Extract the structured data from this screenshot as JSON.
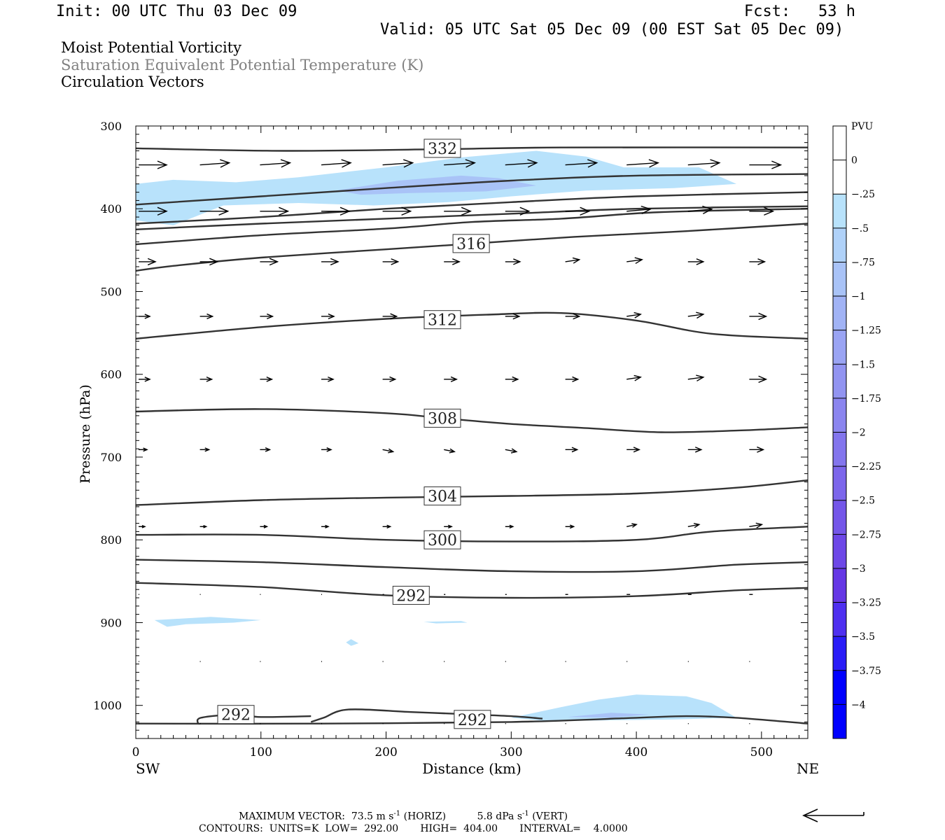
{
  "header": {
    "init": "Init: 00 UTC Thu 03 Dec 09",
    "fcst": "Fcst:   53 h",
    "valid": "Valid: 05 UTC Sat 05 Dec 09 (00 EST Sat 05 Dec 09)"
  },
  "titles": {
    "line1": "Moist Potential Vorticity",
    "line2": "Saturation Equivalent Potential Temperature (K)",
    "line3": "Circulation Vectors"
  },
  "footer": {
    "max_vector_prefix": "MAXIMUM VECTOR:  73.5 m s",
    "max_vector_horiz": "(HORIZ)",
    "max_vector_vert_value": "5.8 dPa s",
    "max_vector_vert": "(VERT)",
    "exponent": "-1",
    "contours": "CONTOURS:  UNITS=K  LOW=  292.00       HIGH=  404.00       INTERVAL=    4.0000"
  },
  "colors": {
    "contour": "#333333",
    "mpv_light": "#b8e2fb",
    "mpv_medium": "#a9c3f7"
  },
  "chart_data": {
    "type": "cross-section",
    "ylabel": "Pressure (hPa)",
    "xlabel": "Distance (km)",
    "x_endpoints": {
      "left": "SW",
      "right": "NE"
    },
    "xlim": [
      0,
      537
    ],
    "ylim": [
      1040,
      300
    ],
    "x_ticks": [
      0,
      100,
      200,
      300,
      400,
      500
    ],
    "y_ticks": [
      300,
      400,
      500,
      600,
      700,
      800,
      900,
      1000
    ],
    "colorbar": {
      "title": "PVU",
      "levels": [
        "0",
        "-.25",
        "-.5",
        "-.75",
        "-1",
        "-1.25",
        "-1.5",
        "-1.75",
        "-2",
        "-2.25",
        "-2.5",
        "-2.75",
        "-3",
        "-3.25",
        "-3.5",
        "-3.75",
        "-4"
      ],
      "colors": [
        "#ffffff",
        "#ffffff",
        "#b8e2fb",
        "#b0d2f9",
        "#a9c3f7",
        "#a1b3f5",
        "#9aa4f3",
        "#9294f1",
        "#8b85ef",
        "#8375ed",
        "#7c66eb",
        "#7456e9",
        "#6d47e7",
        "#6537e5",
        "#4e2ff0",
        "#2a1cf7",
        "#0000ff"
      ]
    },
    "theta_es_contours": [
      {
        "label": "332",
        "label_at": [
          245,
          327
        ],
        "points": [
          [
            0,
            327
          ],
          [
            120,
            330
          ],
          [
            245,
            328
          ],
          [
            340,
            326
          ],
          [
            537,
            326
          ]
        ]
      },
      {
        "label": "",
        "points": [
          [
            0,
            395
          ],
          [
            100,
            385
          ],
          [
            200,
            375
          ],
          [
            300,
            366
          ],
          [
            400,
            360
          ],
          [
            537,
            358
          ]
        ]
      },
      {
        "label": "",
        "points": [
          [
            0,
            418
          ],
          [
            100,
            410
          ],
          [
            200,
            400
          ],
          [
            300,
            392
          ],
          [
            400,
            385
          ],
          [
            537,
            380
          ]
        ]
      },
      {
        "label": "",
        "points": [
          [
            0,
            425
          ],
          [
            100,
            418
          ],
          [
            200,
            412
          ],
          [
            300,
            406
          ],
          [
            400,
            400
          ],
          [
            537,
            397
          ]
        ]
      },
      {
        "label": "316",
        "label_at": [
          268,
          442
        ],
        "points": [
          [
            0,
            443
          ],
          [
            100,
            432
          ],
          [
            200,
            424
          ],
          [
            268,
            416
          ],
          [
            340,
            412
          ],
          [
            420,
            404
          ],
          [
            537,
            400
          ]
        ]
      },
      {
        "label": "",
        "points": [
          [
            0,
            475
          ],
          [
            30,
            469
          ],
          [
            100,
            459
          ],
          [
            200,
            449
          ],
          [
            280,
            441
          ],
          [
            350,
            434
          ],
          [
            440,
            427
          ],
          [
            537,
            418
          ]
        ]
      },
      {
        "label": "312",
        "label_at": [
          245,
          534
        ],
        "points": [
          [
            0,
            557
          ],
          [
            100,
            543
          ],
          [
            200,
            533
          ],
          [
            280,
            528
          ],
          [
            340,
            526
          ],
          [
            400,
            535
          ],
          [
            460,
            551
          ],
          [
            537,
            557
          ]
        ]
      },
      {
        "label": "308",
        "label_at": [
          245,
          653
        ],
        "points": [
          [
            0,
            645
          ],
          [
            100,
            642
          ],
          [
            200,
            647
          ],
          [
            245,
            653
          ],
          [
            300,
            660
          ],
          [
            360,
            665
          ],
          [
            420,
            670
          ],
          [
            480,
            668
          ],
          [
            537,
            664
          ]
        ]
      },
      {
        "label": "304",
        "label_at": [
          245,
          747
        ],
        "points": [
          [
            0,
            758
          ],
          [
            100,
            752
          ],
          [
            200,
            749
          ],
          [
            300,
            747
          ],
          [
            400,
            744
          ],
          [
            480,
            737
          ],
          [
            537,
            728
          ]
        ]
      },
      {
        "label": "300",
        "label_at": [
          245,
          800
        ],
        "points": [
          [
            0,
            794
          ],
          [
            100,
            794
          ],
          [
            200,
            800
          ],
          [
            300,
            802
          ],
          [
            400,
            800
          ],
          [
            460,
            790
          ],
          [
            537,
            784
          ]
        ]
      },
      {
        "label": "",
        "points": [
          [
            0,
            824
          ],
          [
            100,
            827
          ],
          [
            200,
            833
          ],
          [
            300,
            838
          ],
          [
            400,
            838
          ],
          [
            480,
            830
          ],
          [
            537,
            827
          ]
        ]
      },
      {
        "label": "292",
        "label_at": [
          220,
          867
        ],
        "points": [
          [
            0,
            852
          ],
          [
            100,
            857
          ],
          [
            200,
            867
          ],
          [
            300,
            870
          ],
          [
            400,
            868
          ],
          [
            480,
            861
          ],
          [
            537,
            858
          ]
        ]
      },
      {
        "label": "",
        "points": [
          [
            0,
            1022
          ],
          [
            150,
            1022
          ],
          [
            300,
            1020
          ],
          [
            400,
            1015
          ],
          [
            440,
            1013
          ],
          [
            480,
            1015
          ],
          [
            537,
            1022
          ]
        ]
      },
      {
        "label": "292",
        "label_at": [
          80,
          1011
        ],
        "points": [
          [
            50,
            1023
          ],
          [
            52,
            1015
          ],
          [
            80,
            1011
          ],
          [
            100,
            1014
          ],
          [
            140,
            1013
          ]
        ]
      },
      {
        "label": "292",
        "label_at": [
          269,
          1017
        ],
        "points": [
          [
            140,
            1020
          ],
          [
            150,
            1015
          ],
          [
            170,
            1005
          ],
          [
            220,
            1008
          ],
          [
            269,
            1011
          ],
          [
            300,
            1013
          ],
          [
            325,
            1016
          ]
        ]
      }
    ],
    "mpv_regions": [
      {
        "level": "-.5",
        "points": [
          [
            0,
            370
          ],
          [
            30,
            365
          ],
          [
            80,
            368
          ],
          [
            130,
            362
          ],
          [
            200,
            350
          ],
          [
            260,
            338
          ],
          [
            320,
            330
          ],
          [
            360,
            337
          ],
          [
            390,
            350
          ],
          [
            450,
            350
          ],
          [
            480,
            370
          ],
          [
            430,
            375
          ],
          [
            360,
            378
          ],
          [
            300,
            385
          ],
          [
            250,
            392
          ],
          [
            190,
            396
          ],
          [
            130,
            393
          ],
          [
            70,
            396
          ],
          [
            30,
            420
          ],
          [
            0,
            414
          ]
        ]
      },
      {
        "level": "-1",
        "points": [
          [
            160,
            378
          ],
          [
            210,
            366
          ],
          [
            260,
            360
          ],
          [
            290,
            363
          ],
          [
            320,
            372
          ],
          [
            280,
            379
          ],
          [
            220,
            381
          ],
          [
            180,
            383
          ]
        ]
      },
      {
        "level": "-.5",
        "points": [
          [
            15,
            897
          ],
          [
            60,
            893
          ],
          [
            100,
            897
          ],
          [
            78,
            900
          ],
          [
            40,
            902
          ],
          [
            25,
            905
          ]
        ]
      },
      {
        "level": "-.5",
        "points": [
          [
            230,
            899
          ],
          [
            260,
            898
          ],
          [
            265,
            900
          ],
          [
            240,
            901
          ]
        ]
      },
      {
        "level": "-.5",
        "points": [
          [
            168,
            924
          ],
          [
            172,
            920
          ],
          [
            178,
            925
          ],
          [
            172,
            928
          ]
        ]
      },
      {
        "level": "-.5",
        "points": [
          [
            300,
            1015
          ],
          [
            340,
            1002
          ],
          [
            370,
            993
          ],
          [
            400,
            987
          ],
          [
            440,
            989
          ],
          [
            460,
            997
          ],
          [
            480,
            1015
          ],
          [
            430,
            1017
          ],
          [
            380,
            1018
          ],
          [
            330,
            1019
          ]
        ]
      },
      {
        "level": "-1",
        "points": [
          [
            345,
            1014
          ],
          [
            380,
            1009
          ],
          [
            410,
            1011
          ],
          [
            380,
            1015
          ]
        ]
      }
    ],
    "vector_rows_hpa": [
      347,
      403,
      464,
      530,
      606,
      691,
      784,
      866,
      947,
      1022
    ],
    "vector_columns_km": [
      0,
      49,
      97,
      146,
      195,
      244,
      293,
      341,
      390,
      439,
      488
    ],
    "vectors": [
      [
        [
          40,
          0
        ],
        [
          42,
          -1
        ],
        [
          43,
          -1
        ],
        [
          42,
          -1
        ],
        [
          43,
          -1
        ],
        [
          44,
          -1
        ],
        [
          45,
          -1
        ],
        [
          45,
          -1
        ],
        [
          45,
          -1
        ],
        [
          45,
          -1
        ],
        [
          45,
          0
        ]
      ],
      [
        [
          40,
          0
        ],
        [
          40,
          0
        ],
        [
          40,
          0
        ],
        [
          40,
          0
        ],
        [
          40,
          0
        ],
        [
          38,
          0
        ],
        [
          34,
          0
        ],
        [
          34,
          0
        ],
        [
          34,
          -1
        ],
        [
          34,
          -1
        ],
        [
          34,
          0
        ]
      ],
      [
        [
          24,
          0
        ],
        [
          25,
          0
        ],
        [
          25,
          0
        ],
        [
          24,
          0
        ],
        [
          22,
          0
        ],
        [
          22,
          0
        ],
        [
          21,
          0
        ],
        [
          20,
          -1
        ],
        [
          22,
          -1
        ],
        [
          22,
          0
        ],
        [
          22,
          0
        ]
      ],
      [
        [
          16,
          0
        ],
        [
          18,
          0
        ],
        [
          18,
          0
        ],
        [
          18,
          0
        ],
        [
          20,
          0
        ],
        [
          20,
          0
        ],
        [
          20,
          0
        ],
        [
          20,
          0
        ],
        [
          20,
          -1
        ],
        [
          22,
          -1
        ],
        [
          24,
          0
        ]
      ],
      [
        [
          16,
          0
        ],
        [
          17,
          0
        ],
        [
          17,
          0
        ],
        [
          17,
          0
        ],
        [
          18,
          0
        ],
        [
          18,
          0
        ],
        [
          18,
          0
        ],
        [
          18,
          0
        ],
        [
          20,
          -1
        ],
        [
          22,
          -1
        ],
        [
          24,
          0
        ]
      ],
      [
        [
          12,
          0
        ],
        [
          13,
          0
        ],
        [
          14,
          0
        ],
        [
          14,
          0
        ],
        [
          15,
          1
        ],
        [
          15,
          1
        ],
        [
          16,
          1
        ],
        [
          17,
          0
        ],
        [
          18,
          0
        ],
        [
          19,
          0
        ],
        [
          20,
          0
        ]
      ],
      [
        [
          9,
          0
        ],
        [
          9,
          0
        ],
        [
          10,
          0
        ],
        [
          10,
          0
        ],
        [
          11,
          0
        ],
        [
          11,
          0
        ],
        [
          11,
          0
        ],
        [
          12,
          0
        ],
        [
          14,
          -1
        ],
        [
          16,
          -1
        ],
        [
          18,
          -1
        ]
      ],
      [
        [
          1,
          0
        ],
        [
          1,
          0
        ],
        [
          1,
          0
        ],
        [
          1,
          0
        ],
        [
          2,
          0
        ],
        [
          2,
          0
        ],
        [
          2,
          0
        ],
        [
          4,
          0
        ],
        [
          5,
          0
        ],
        [
          5,
          0
        ],
        [
          5,
          0
        ]
      ],
      [
        [
          1,
          0
        ],
        [
          1,
          0
        ],
        [
          1,
          0
        ],
        [
          1,
          0
        ],
        [
          1,
          0
        ],
        [
          1,
          0
        ],
        [
          1,
          0
        ],
        [
          1,
          0
        ],
        [
          1,
          0
        ],
        [
          1,
          0
        ],
        [
          1,
          0
        ]
      ],
      [
        [
          1,
          0
        ],
        [
          1,
          0
        ],
        [
          1,
          0
        ],
        [
          1,
          0
        ],
        [
          1,
          0
        ],
        [
          1,
          0
        ],
        [
          1,
          0
        ],
        [
          1,
          0
        ],
        [
          1,
          0
        ],
        [
          1,
          0
        ],
        [
          1,
          0
        ]
      ]
    ]
  }
}
